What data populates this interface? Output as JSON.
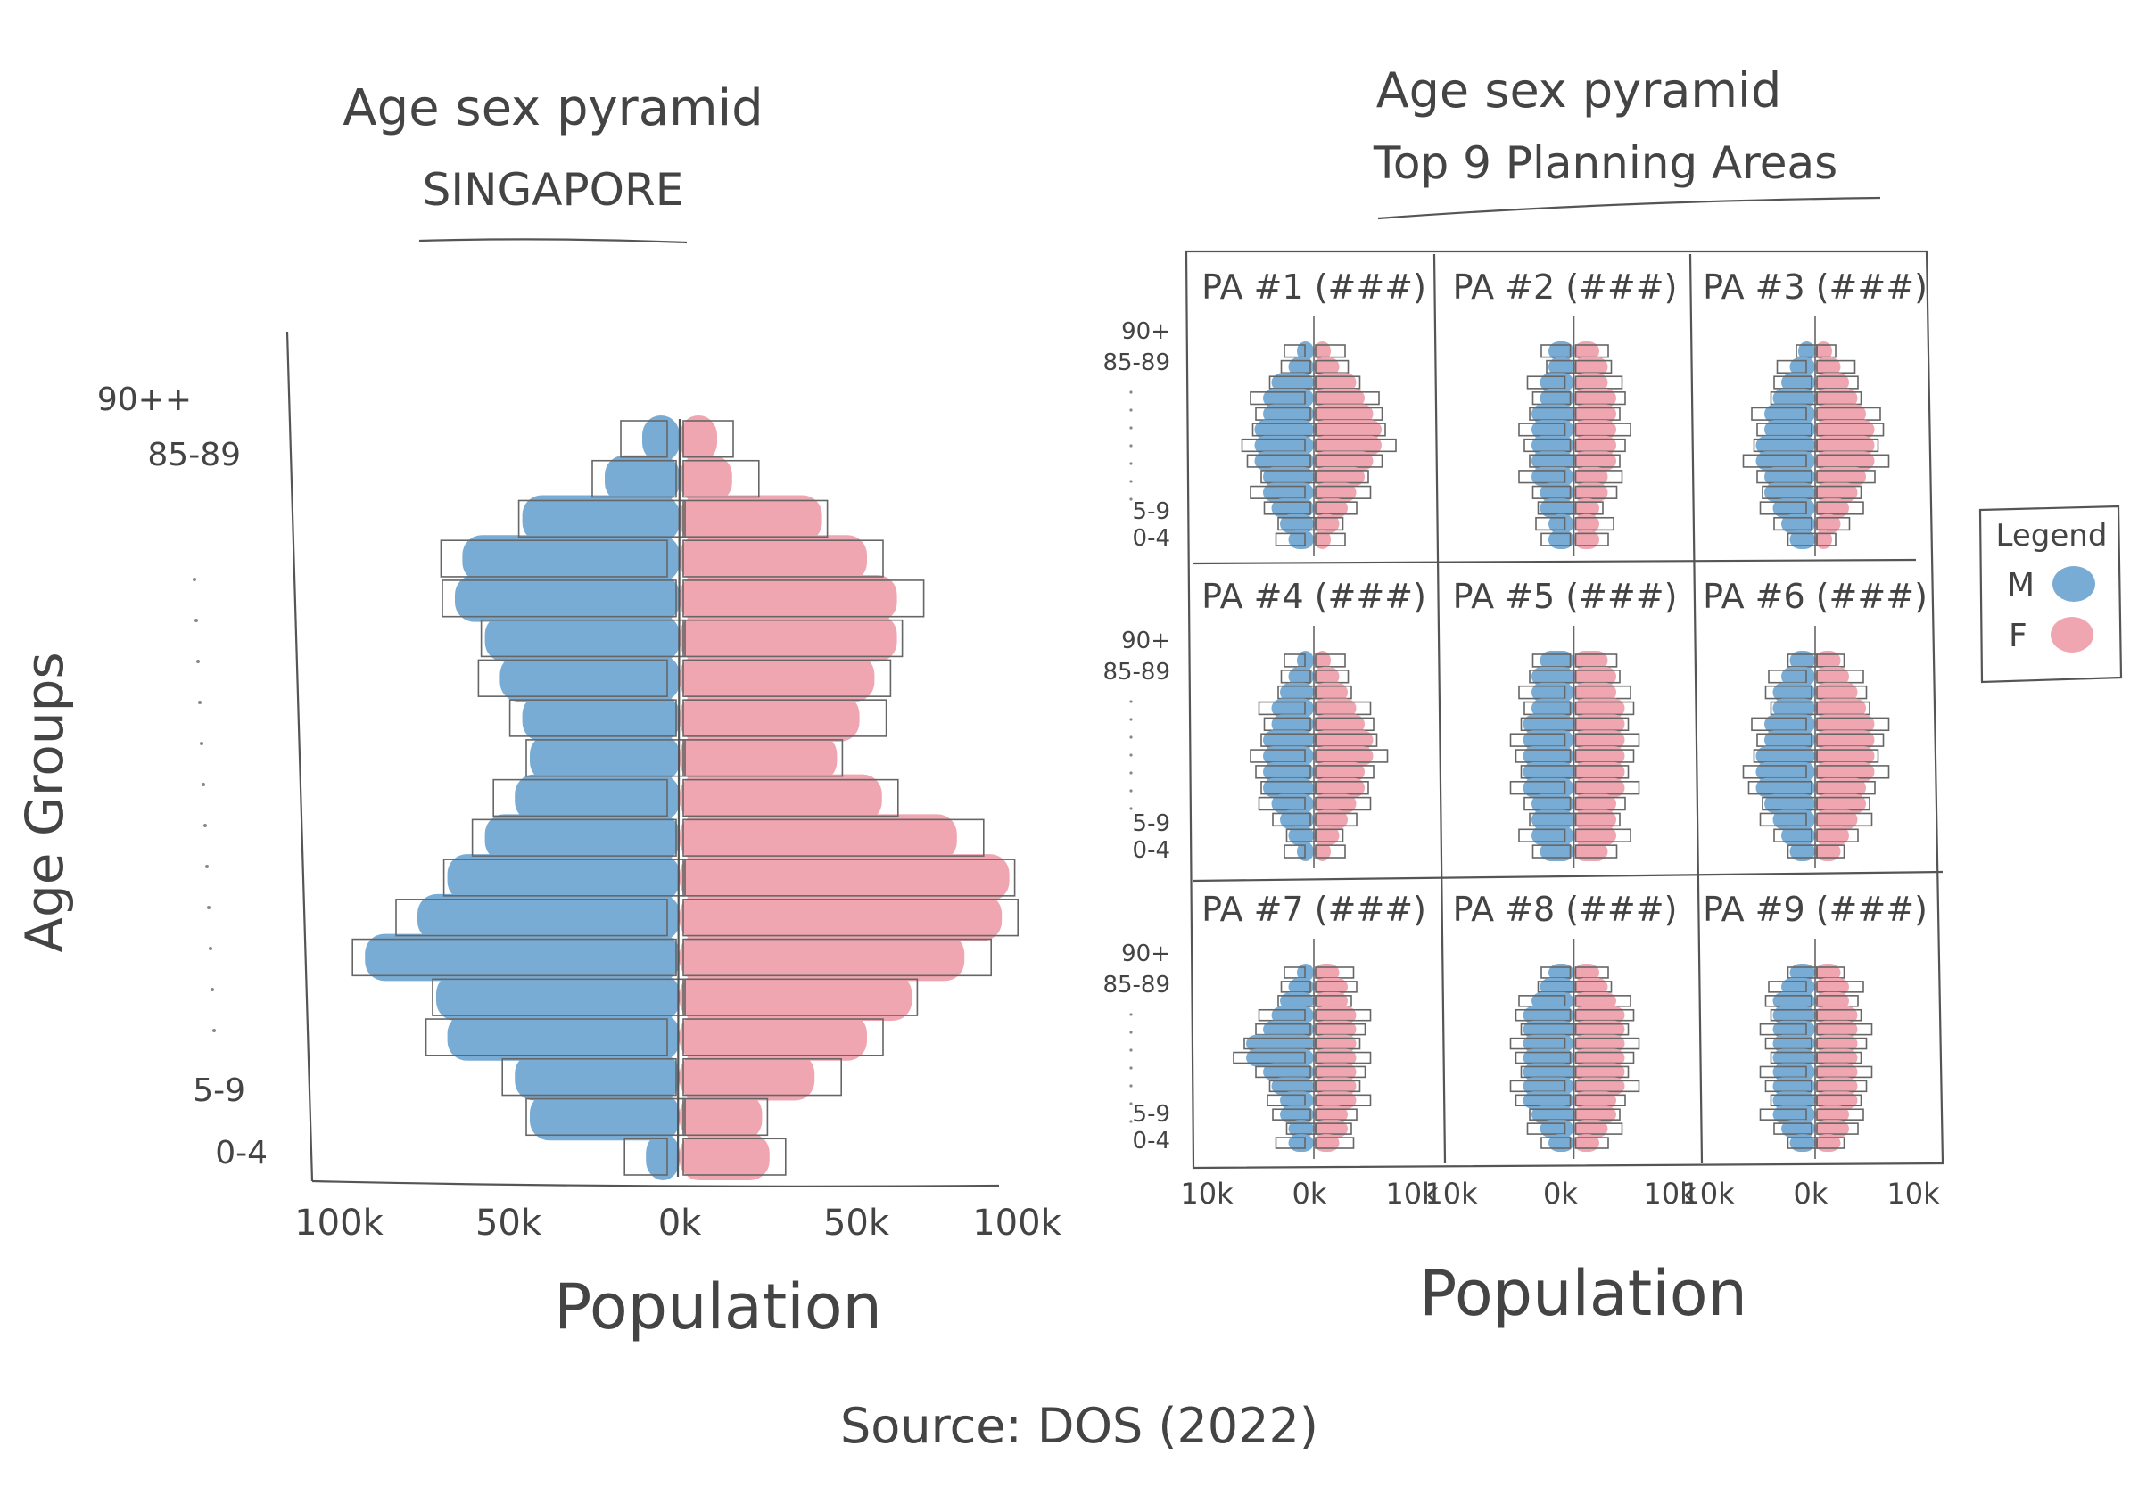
{
  "colors": {
    "male": "#79acd4",
    "female": "#f0a6b0",
    "pencil": "#555555"
  },
  "source_label": "Source: DOS (2022)",
  "chart_data": [
    {
      "type": "bar",
      "subtype": "population-pyramid",
      "title": "Age sex pyramid",
      "subtitle": "SINGAPORE",
      "xlabel": "Population",
      "ylabel": "Age Groups",
      "y_tick_labels_top": [
        "90++",
        "85-89"
      ],
      "y_tick_labels_bottom": [
        "5-9",
        "0-4"
      ],
      "x_tick_labels": [
        "100k",
        "50k",
        "0k",
        "50k",
        "100k"
      ],
      "xlim": [
        -100,
        100
      ],
      "grid": false,
      "series": [
        {
          "name": "M",
          "values": [
            10,
            20,
            42,
            58,
            60,
            52,
            48,
            42,
            40,
            44,
            52,
            62,
            70,
            84,
            65,
            62,
            44,
            40,
            9
          ]
        },
        {
          "name": "F",
          "values": [
            10,
            14,
            38,
            50,
            58,
            58,
            52,
            48,
            42,
            54,
            74,
            88,
            86,
            76,
            62,
            50,
            36,
            22,
            24
          ]
        }
      ]
    },
    {
      "type": "bar",
      "subtype": "small-multiples-population-pyramid",
      "title": "Age sex pyramid",
      "subtitle": "Top 9 Planning Areas",
      "xlabel": "Population",
      "y_tick_labels_top": [
        "90+",
        "85-89"
      ],
      "y_tick_labels_bottom": [
        "5-9",
        "0-4"
      ],
      "x_tick_labels": [
        "10k",
        "0k",
        "10k"
      ],
      "xlim": [
        -10,
        10
      ],
      "panels": [
        {
          "label": "PA #1 (###)",
          "m": [
            2,
            3,
            5,
            6,
            6,
            7,
            7,
            7,
            6,
            6,
            5,
            4,
            3
          ],
          "f": [
            2,
            3,
            5,
            6,
            7,
            8,
            8,
            7,
            6,
            5,
            4,
            3,
            2
          ]
        },
        {
          "label": "PA #2 (###)",
          "m": [
            3,
            3,
            4,
            4,
            5,
            5,
            5,
            5,
            5,
            4,
            4,
            3,
            3
          ],
          "f": [
            3,
            4,
            4,
            5,
            5,
            5,
            5,
            5,
            4,
            4,
            3,
            3,
            3
          ]
        },
        {
          "label": "PA #3 (###)",
          "m": [
            2,
            3,
            4,
            5,
            6,
            6,
            7,
            7,
            6,
            6,
            5,
            4,
            3
          ],
          "f": [
            2,
            3,
            4,
            5,
            6,
            7,
            7,
            7,
            6,
            5,
            4,
            3,
            2
          ]
        },
        {
          "label": "PA #4 (###)",
          "m": [
            2,
            3,
            4,
            5,
            5,
            6,
            6,
            6,
            6,
            5,
            4,
            3,
            2
          ],
          "f": [
            2,
            3,
            4,
            5,
            6,
            7,
            7,
            6,
            6,
            5,
            4,
            3,
            2
          ]
        },
        {
          "label": "PA #5 (###)",
          "m": [
            4,
            5,
            5,
            5,
            6,
            6,
            6,
            6,
            6,
            5,
            5,
            5,
            4
          ],
          "f": [
            4,
            5,
            5,
            6,
            6,
            6,
            6,
            6,
            6,
            5,
            5,
            5,
            4
          ]
        },
        {
          "label": "PA #6 (###)",
          "m": [
            3,
            4,
            5,
            5,
            6,
            6,
            7,
            7,
            7,
            6,
            5,
            4,
            3
          ],
          "f": [
            3,
            4,
            5,
            6,
            7,
            7,
            7,
            7,
            6,
            6,
            5,
            4,
            3
          ]
        },
        {
          "label": "PA #7 (###)",
          "m": [
            2,
            3,
            4,
            5,
            6,
            8,
            8,
            6,
            5,
            4,
            4,
            3,
            3
          ],
          "f": [
            3,
            4,
            4,
            5,
            5,
            5,
            5,
            5,
            5,
            5,
            4,
            4,
            3
          ]
        },
        {
          "label": "PA #8 (###)",
          "m": [
            3,
            4,
            5,
            6,
            6,
            6,
            6,
            6,
            6,
            6,
            5,
            4,
            3
          ],
          "f": [
            3,
            4,
            5,
            6,
            6,
            6,
            6,
            6,
            6,
            5,
            5,
            4,
            3
          ]
        },
        {
          "label": "PA #9 (###)",
          "m": [
            3,
            4,
            5,
            5,
            5,
            5,
            5,
            5,
            5,
            5,
            5,
            4,
            3
          ],
          "f": [
            3,
            4,
            4,
            5,
            5,
            5,
            5,
            5,
            5,
            5,
            4,
            4,
            3
          ]
        }
      ],
      "legend": {
        "title": "Legend",
        "placement": "right",
        "entries": [
          {
            "name": "M"
          },
          {
            "name": "F"
          }
        ]
      }
    }
  ]
}
